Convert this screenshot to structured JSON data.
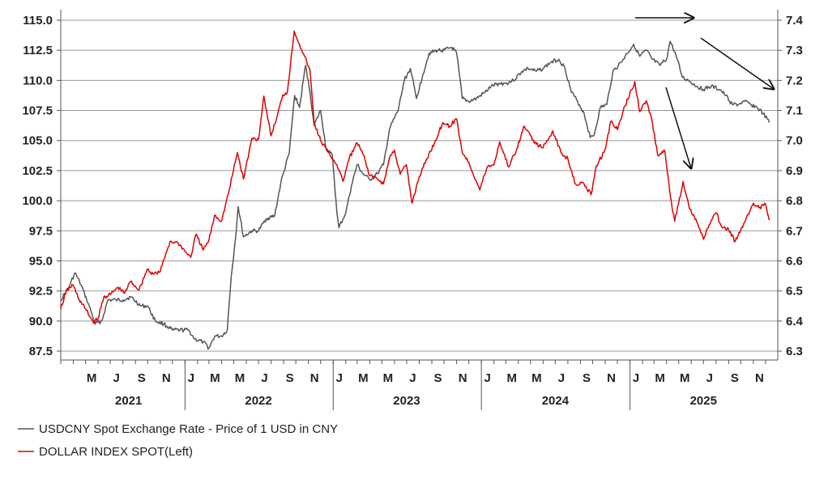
{
  "chart_data": {
    "type": "line",
    "title": "",
    "xlabel": "",
    "ylabel": "",
    "x_range": [
      "2021-03-01",
      "2025-12-31"
    ],
    "left_axis": {
      "min": 87.5,
      "max": 115.0,
      "ticks": [
        "115.0",
        "112.5",
        "110.0",
        "107.5",
        "105.0",
        "102.5",
        "100.0",
        "97.5",
        "95.0",
        "92.5",
        "90.0",
        "87.5"
      ]
    },
    "right_axis": {
      "min": 6.3,
      "max": 7.4,
      "ticks": [
        "7.4",
        "7.3",
        "7.2",
        "7.1",
        "7.0",
        "6.9",
        "6.8",
        "6.7",
        "6.6",
        "6.5",
        "6.4",
        "6.3"
      ]
    },
    "grid": "horizontal",
    "month_ticks": [
      {
        "label": "M",
        "date": "2021-05-01"
      },
      {
        "label": "J",
        "date": "2021-07-01"
      },
      {
        "label": "S",
        "date": "2021-09-01"
      },
      {
        "label": "N",
        "date": "2021-11-01"
      },
      {
        "label": "J",
        "date": "2022-01-01"
      },
      {
        "label": "M",
        "date": "2022-03-01"
      },
      {
        "label": "M",
        "date": "2022-05-01"
      },
      {
        "label": "J",
        "date": "2022-07-01"
      },
      {
        "label": "S",
        "date": "2022-09-01"
      },
      {
        "label": "N",
        "date": "2022-11-01"
      },
      {
        "label": "J",
        "date": "2023-01-01"
      },
      {
        "label": "M",
        "date": "2023-03-01"
      },
      {
        "label": "M",
        "date": "2023-05-01"
      },
      {
        "label": "J",
        "date": "2023-07-01"
      },
      {
        "label": "S",
        "date": "2023-09-01"
      },
      {
        "label": "N",
        "date": "2023-11-01"
      },
      {
        "label": "J",
        "date": "2024-01-01"
      },
      {
        "label": "M",
        "date": "2024-03-01"
      },
      {
        "label": "M",
        "date": "2024-05-01"
      },
      {
        "label": "J",
        "date": "2024-07-01"
      },
      {
        "label": "S",
        "date": "2024-09-01"
      },
      {
        "label": "N",
        "date": "2024-11-01"
      },
      {
        "label": "J",
        "date": "2025-01-01"
      },
      {
        "label": "M",
        "date": "2025-03-01"
      },
      {
        "label": "M",
        "date": "2025-05-01"
      },
      {
        "label": "J",
        "date": "2025-07-01"
      },
      {
        "label": "S",
        "date": "2025-09-01"
      },
      {
        "label": "N",
        "date": "2025-11-01"
      }
    ],
    "year_labels": [
      {
        "label": "2021",
        "date": "2021-08-15"
      },
      {
        "label": "2022",
        "date": "2022-07-01"
      },
      {
        "label": "2023",
        "date": "2023-07-01"
      },
      {
        "label": "2024",
        "date": "2024-07-01"
      },
      {
        "label": "2025",
        "date": "2025-07-01"
      }
    ],
    "legend_placement": "bottom-left",
    "series": [
      {
        "name": "USDCNY Spot Exchange Rate - Price of 1 USD in CNY",
        "axis": "right",
        "color": "#555555",
        "points": [
          [
            "2021-03-01",
            6.47
          ],
          [
            "2021-03-20",
            6.51
          ],
          [
            "2021-04-05",
            6.56
          ],
          [
            "2021-04-20",
            6.52
          ],
          [
            "2021-05-10",
            6.45
          ],
          [
            "2021-05-25",
            6.39
          ],
          [
            "2021-06-10",
            6.4
          ],
          [
            "2021-06-25",
            6.47
          ],
          [
            "2021-07-15",
            6.47
          ],
          [
            "2021-08-01",
            6.47
          ],
          [
            "2021-08-20",
            6.48
          ],
          [
            "2021-09-15",
            6.45
          ],
          [
            "2021-10-01",
            6.45
          ],
          [
            "2021-10-20",
            6.4
          ],
          [
            "2021-11-10",
            6.39
          ],
          [
            "2021-12-01",
            6.37
          ],
          [
            "2021-12-20",
            6.37
          ],
          [
            "2022-01-10",
            6.37
          ],
          [
            "2022-01-25",
            6.34
          ],
          [
            "2022-02-15",
            6.33
          ],
          [
            "2022-03-01",
            6.31
          ],
          [
            "2022-03-15",
            6.35
          ],
          [
            "2022-04-01",
            6.35
          ],
          [
            "2022-04-15",
            6.37
          ],
          [
            "2022-04-25",
            6.55
          ],
          [
            "2022-05-05",
            6.67
          ],
          [
            "2022-05-12",
            6.78
          ],
          [
            "2022-05-25",
            6.68
          ],
          [
            "2022-06-15",
            6.7
          ],
          [
            "2022-07-01",
            6.7
          ],
          [
            "2022-07-20",
            6.74
          ],
          [
            "2022-08-10",
            6.75
          ],
          [
            "2022-08-25",
            6.86
          ],
          [
            "2022-09-15",
            6.96
          ],
          [
            "2022-09-28",
            7.15
          ],
          [
            "2022-10-10",
            7.11
          ],
          [
            "2022-10-25",
            7.25
          ],
          [
            "2022-11-05",
            7.16
          ],
          [
            "2022-11-15",
            7.05
          ],
          [
            "2022-12-01",
            7.1
          ],
          [
            "2022-12-15",
            6.97
          ],
          [
            "2022-12-30",
            6.95
          ],
          [
            "2023-01-10",
            6.76
          ],
          [
            "2023-01-15",
            6.71
          ],
          [
            "2023-02-01",
            6.76
          ],
          [
            "2023-02-15",
            6.85
          ],
          [
            "2023-03-01",
            6.92
          ],
          [
            "2023-03-15",
            6.89
          ],
          [
            "2023-04-01",
            6.87
          ],
          [
            "2023-04-20",
            6.89
          ],
          [
            "2023-05-05",
            6.92
          ],
          [
            "2023-05-20",
            7.04
          ],
          [
            "2023-06-10",
            7.1
          ],
          [
            "2023-06-25",
            7.2
          ],
          [
            "2023-07-10",
            7.24
          ],
          [
            "2023-07-25",
            7.14
          ],
          [
            "2023-08-10",
            7.22
          ],
          [
            "2023-08-25",
            7.29
          ],
          [
            "2023-09-15",
            7.3
          ],
          [
            "2023-10-01",
            7.3
          ],
          [
            "2023-10-20",
            7.31
          ],
          [
            "2023-11-01",
            7.29
          ],
          [
            "2023-11-15",
            7.14
          ],
          [
            "2023-12-01",
            7.13
          ],
          [
            "2023-12-20",
            7.14
          ],
          [
            "2024-01-10",
            7.16
          ],
          [
            "2024-01-25",
            7.18
          ],
          [
            "2024-02-15",
            7.19
          ],
          [
            "2024-03-01",
            7.19
          ],
          [
            "2024-03-20",
            7.2
          ],
          [
            "2024-04-10",
            7.23
          ],
          [
            "2024-04-25",
            7.24
          ],
          [
            "2024-05-15",
            7.23
          ],
          [
            "2024-06-01",
            7.24
          ],
          [
            "2024-06-20",
            7.26
          ],
          [
            "2024-07-10",
            7.27
          ],
          [
            "2024-07-25",
            7.24
          ],
          [
            "2024-08-10",
            7.16
          ],
          [
            "2024-08-25",
            7.13
          ],
          [
            "2024-09-10",
            7.09
          ],
          [
            "2024-09-25",
            7.01
          ],
          [
            "2024-10-05",
            7.02
          ],
          [
            "2024-10-20",
            7.11
          ],
          [
            "2024-11-05",
            7.12
          ],
          [
            "2024-11-20",
            7.23
          ],
          [
            "2024-12-10",
            7.26
          ],
          [
            "2024-12-25",
            7.29
          ],
          [
            "2025-01-10",
            7.32
          ],
          [
            "2025-01-25",
            7.28
          ],
          [
            "2025-02-10",
            7.3
          ],
          [
            "2025-02-25",
            7.27
          ],
          [
            "2025-03-15",
            7.25
          ],
          [
            "2025-04-01",
            7.27
          ],
          [
            "2025-04-10",
            7.33
          ],
          [
            "2025-04-25",
            7.28
          ],
          [
            "2025-05-10",
            7.21
          ],
          [
            "2025-05-25",
            7.2
          ],
          [
            "2025-06-15",
            7.18
          ],
          [
            "2025-07-01",
            7.17
          ],
          [
            "2025-07-20",
            7.18
          ],
          [
            "2025-08-10",
            7.17
          ],
          [
            "2025-08-25",
            7.15
          ],
          [
            "2025-09-10",
            7.12
          ],
          [
            "2025-09-25",
            7.12
          ],
          [
            "2025-10-10",
            7.13
          ],
          [
            "2025-10-25",
            7.12
          ],
          [
            "2025-11-10",
            7.11
          ],
          [
            "2025-11-25",
            7.09
          ],
          [
            "2025-12-10",
            7.06
          ]
        ]
      },
      {
        "name": "DOLLAR INDEX SPOT(Left)",
        "axis": "left",
        "color": "#e00000",
        "points": [
          [
            "2021-03-01",
            91.0
          ],
          [
            "2021-03-15",
            92.5
          ],
          [
            "2021-03-31",
            93.0
          ],
          [
            "2021-04-15",
            91.8
          ],
          [
            "2021-05-01",
            91.0
          ],
          [
            "2021-05-20",
            89.9
          ],
          [
            "2021-06-01",
            90.2
          ],
          [
            "2021-06-15",
            92.0
          ],
          [
            "2021-07-01",
            92.2
          ],
          [
            "2021-07-20",
            92.8
          ],
          [
            "2021-08-05",
            92.3
          ],
          [
            "2021-08-20",
            93.3
          ],
          [
            "2021-09-10",
            92.6
          ],
          [
            "2021-09-30",
            94.3
          ],
          [
            "2021-10-15",
            93.9
          ],
          [
            "2021-11-01",
            94.1
          ],
          [
            "2021-11-15",
            95.6
          ],
          [
            "2021-11-25",
            96.6
          ],
          [
            "2021-12-15",
            96.5
          ],
          [
            "2022-01-01",
            95.8
          ],
          [
            "2022-01-15",
            95.3
          ],
          [
            "2022-01-28",
            97.2
          ],
          [
            "2022-02-15",
            95.9
          ],
          [
            "2022-03-01",
            96.7
          ],
          [
            "2022-03-15",
            98.8
          ],
          [
            "2022-04-01",
            98.3
          ],
          [
            "2022-04-20",
            100.9
          ],
          [
            "2022-05-10",
            104.0
          ],
          [
            "2022-05-25",
            101.8
          ],
          [
            "2022-06-15",
            105.2
          ],
          [
            "2022-07-01",
            105.1
          ],
          [
            "2022-07-14",
            108.7
          ],
          [
            "2022-08-01",
            105.4
          ],
          [
            "2022-08-15",
            106.9
          ],
          [
            "2022-08-30",
            108.8
          ],
          [
            "2022-09-10",
            109.0
          ],
          [
            "2022-09-27",
            114.1
          ],
          [
            "2022-10-10",
            113.0
          ],
          [
            "2022-10-20",
            112.2
          ],
          [
            "2022-11-05",
            110.8
          ],
          [
            "2022-11-15",
            106.5
          ],
          [
            "2022-12-01",
            105.0
          ],
          [
            "2022-12-20",
            104.0
          ],
          [
            "2023-01-10",
            103.0
          ],
          [
            "2023-01-25",
            101.6
          ],
          [
            "2023-02-10",
            103.6
          ],
          [
            "2023-03-01",
            104.8
          ],
          [
            "2023-03-15",
            103.9
          ],
          [
            "2023-04-01",
            102.1
          ],
          [
            "2023-04-20",
            101.8
          ],
          [
            "2023-05-05",
            101.4
          ],
          [
            "2023-05-20",
            103.6
          ],
          [
            "2023-06-01",
            104.2
          ],
          [
            "2023-06-15",
            102.2
          ],
          [
            "2023-06-30",
            103.0
          ],
          [
            "2023-07-14",
            99.8
          ],
          [
            "2023-08-01",
            102.0
          ],
          [
            "2023-08-20",
            103.5
          ],
          [
            "2023-09-10",
            105.0
          ],
          [
            "2023-09-28",
            106.5
          ],
          [
            "2023-10-15",
            106.2
          ],
          [
            "2023-11-01",
            106.8
          ],
          [
            "2023-11-15",
            104.0
          ],
          [
            "2023-12-01",
            103.2
          ],
          [
            "2023-12-28",
            100.9
          ],
          [
            "2024-01-15",
            102.8
          ],
          [
            "2024-02-01",
            103.0
          ],
          [
            "2024-02-15",
            104.9
          ],
          [
            "2024-03-08",
            102.8
          ],
          [
            "2024-03-28",
            104.3
          ],
          [
            "2024-04-16",
            106.2
          ],
          [
            "2024-05-01",
            105.4
          ],
          [
            "2024-05-15",
            104.7
          ],
          [
            "2024-06-01",
            104.4
          ],
          [
            "2024-06-25",
            105.8
          ],
          [
            "2024-07-15",
            104.0
          ],
          [
            "2024-08-01",
            103.5
          ],
          [
            "2024-08-20",
            101.4
          ],
          [
            "2024-09-10",
            101.4
          ],
          [
            "2024-09-27",
            100.5
          ],
          [
            "2024-10-10",
            102.9
          ],
          [
            "2024-10-31",
            104.2
          ],
          [
            "2024-11-15",
            106.6
          ],
          [
            "2024-12-01",
            105.9
          ],
          [
            "2024-12-20",
            107.9
          ],
          [
            "2025-01-13",
            109.9
          ],
          [
            "2025-01-25",
            107.4
          ],
          [
            "2025-02-10",
            108.3
          ],
          [
            "2025-02-25",
            106.5
          ],
          [
            "2025-03-10",
            103.8
          ],
          [
            "2025-03-28",
            104.1
          ],
          [
            "2025-04-10",
            100.5
          ],
          [
            "2025-04-21",
            98.3
          ],
          [
            "2025-05-12",
            101.6
          ],
          [
            "2025-05-28",
            99.3
          ],
          [
            "2025-06-15",
            98.2
          ],
          [
            "2025-07-01",
            96.8
          ],
          [
            "2025-07-15",
            98.0
          ],
          [
            "2025-08-01",
            99.0
          ],
          [
            "2025-08-15",
            97.8
          ],
          [
            "2025-09-01",
            97.6
          ],
          [
            "2025-09-17",
            96.6
          ],
          [
            "2025-10-01",
            97.6
          ],
          [
            "2025-10-15",
            98.6
          ],
          [
            "2025-11-01",
            99.8
          ],
          [
            "2025-11-15",
            99.4
          ],
          [
            "2025-12-01",
            99.7
          ],
          [
            "2025-12-10",
            98.4
          ]
        ]
      }
    ]
  }
}
